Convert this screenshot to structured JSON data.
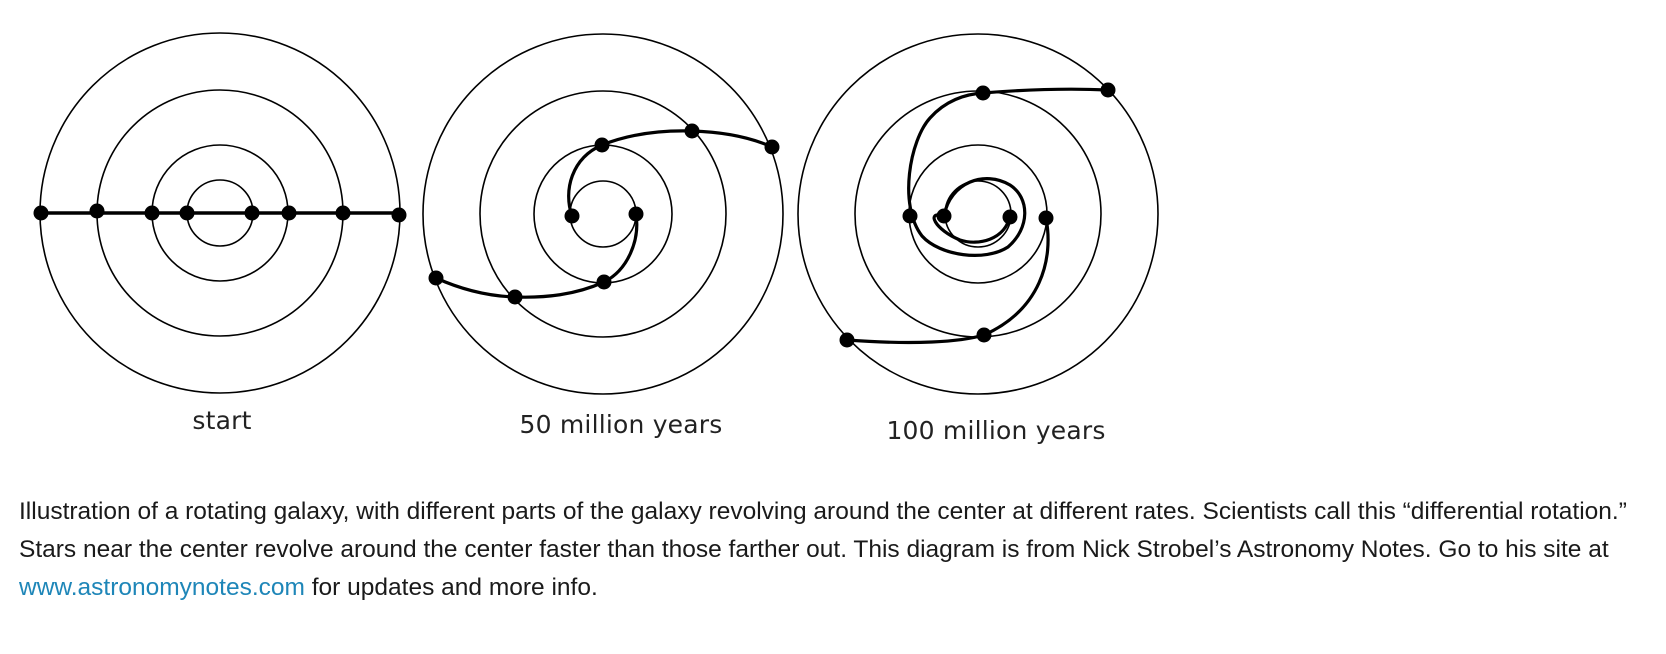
{
  "colors": {
    "ink": "#000000",
    "caption_text": "#1a1a1a",
    "link": "#1e86b8"
  },
  "panels": [
    {
      "label": "start"
    },
    {
      "label": "50 million years"
    },
    {
      "label": "100 million years"
    }
  ],
  "caption": {
    "text_before_link": "Illustration of a rotating galaxy, with different parts of the galaxy revolving around the center at different rates. Scientists call this “differential rotation.” Stars near the center revolve around the center faster than those farther out. This diagram is from Nick Strobel’s Astronomy Notes. Go to his site at ",
    "link_text": "www.astronomynotes.com",
    "text_after_link": " for updates and more info."
  }
}
